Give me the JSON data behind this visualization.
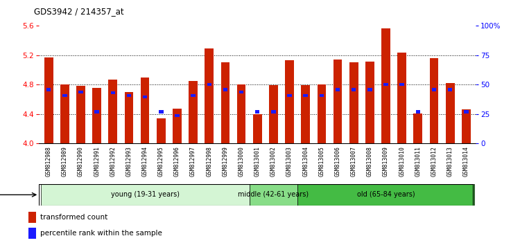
{
  "title": "GDS3942 / 214357_at",
  "samples": [
    "GSM812988",
    "GSM812989",
    "GSM812990",
    "GSM812991",
    "GSM812992",
    "GSM812993",
    "GSM812994",
    "GSM812995",
    "GSM812996",
    "GSM812997",
    "GSM812998",
    "GSM812999",
    "GSM813000",
    "GSM813001",
    "GSM813002",
    "GSM813003",
    "GSM813004",
    "GSM813005",
    "GSM813006",
    "GSM813007",
    "GSM813008",
    "GSM813009",
    "GSM813010",
    "GSM813011",
    "GSM813012",
    "GSM813013",
    "GSM813014"
  ],
  "bar_values": [
    5.17,
    4.8,
    4.78,
    4.75,
    4.87,
    4.7,
    4.9,
    4.34,
    4.47,
    4.85,
    5.29,
    5.1,
    4.8,
    4.4,
    4.79,
    5.13,
    4.79,
    4.8,
    5.14,
    5.1,
    5.11,
    5.56,
    5.23,
    4.41,
    5.16,
    4.82,
    4.46
  ],
  "blue_values": [
    4.73,
    4.65,
    4.7,
    4.43,
    4.69,
    4.65,
    4.63,
    4.43,
    4.38,
    4.65,
    4.8,
    4.73,
    4.7,
    4.43,
    4.43,
    4.65,
    4.65,
    4.65,
    4.73,
    4.73,
    4.73,
    4.8,
    4.8,
    4.43,
    4.73,
    4.73,
    4.43
  ],
  "ymin": 4.0,
  "ymax": 5.6,
  "yticks": [
    4.0,
    4.4,
    4.8,
    5.2,
    5.6
  ],
  "right_yticks": [
    0,
    25,
    50,
    75,
    100
  ],
  "right_yticklabels": [
    "0",
    "25",
    "50",
    "75",
    "100%"
  ],
  "bar_color": "#cc2200",
  "blue_color": "#1a1aff",
  "age_groups": [
    {
      "label": "young (19-31 years)",
      "start": 0,
      "end": 13,
      "color": "#d4f5d4"
    },
    {
      "label": "middle (42-61 years)",
      "start": 13,
      "end": 16,
      "color": "#88dd88"
    },
    {
      "label": "old (65-84 years)",
      "start": 16,
      "end": 27,
      "color": "#44bb44"
    }
  ],
  "tick_label_fontsize": 5.8,
  "bar_width": 0.55
}
